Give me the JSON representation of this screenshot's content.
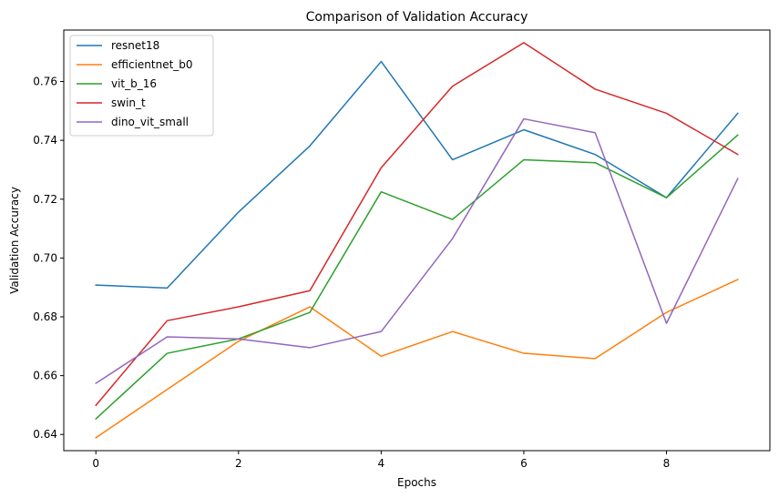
{
  "chart_data": {
    "type": "line",
    "title": "Comparison of Validation Accuracy",
    "xlabel": "Epochs",
    "ylabel": "Validation Accuracy",
    "x": [
      0,
      1,
      2,
      3,
      4,
      5,
      6,
      7,
      8,
      9
    ],
    "xlim": [
      -0.45,
      9.45
    ],
    "ylim": [
      0.6345,
      0.7775
    ],
    "xticks": [
      0,
      2,
      4,
      6,
      8
    ],
    "xtick_labels": [
      "0",
      "2",
      "4",
      "6",
      "8"
    ],
    "yticks": [
      0.64,
      0.66,
      0.68,
      0.7,
      0.72,
      0.74,
      0.76
    ],
    "ytick_labels": [
      "0.64",
      "0.66",
      "0.68",
      "0.70",
      "0.72",
      "0.74",
      "0.76"
    ],
    "grid": false,
    "legend_position": "top-left",
    "series": [
      {
        "name": "resnet18",
        "color": "#1f77b4",
        "values": [
          0.6908,
          0.6898,
          0.7156,
          0.7381,
          0.7668,
          0.7334,
          0.7436,
          0.7352,
          0.7205,
          0.7492
        ]
      },
      {
        "name": "efficientnet_b0",
        "color": "#ff7f0e",
        "values": [
          0.6389,
          0.6553,
          0.6717,
          0.6834,
          0.6666,
          0.675,
          0.6676,
          0.6658,
          0.6815,
          0.6927
        ]
      },
      {
        "name": "vit_b_16",
        "color": "#2ca02c",
        "values": [
          0.6453,
          0.6676,
          0.6725,
          0.6815,
          0.7225,
          0.7131,
          0.7334,
          0.7324,
          0.7205,
          0.7418
        ]
      },
      {
        "name": "swin_t",
        "color": "#d62728",
        "values": [
          0.6499,
          0.6787,
          0.6834,
          0.6889,
          0.7307,
          0.7584,
          0.7732,
          0.7574,
          0.7492,
          0.7352
        ]
      },
      {
        "name": "dino_vit_small",
        "color": "#9467bd",
        "values": [
          0.6574,
          0.6732,
          0.6725,
          0.6695,
          0.675,
          0.7066,
          0.7473,
          0.7426,
          0.6778,
          0.727
        ]
      }
    ]
  }
}
